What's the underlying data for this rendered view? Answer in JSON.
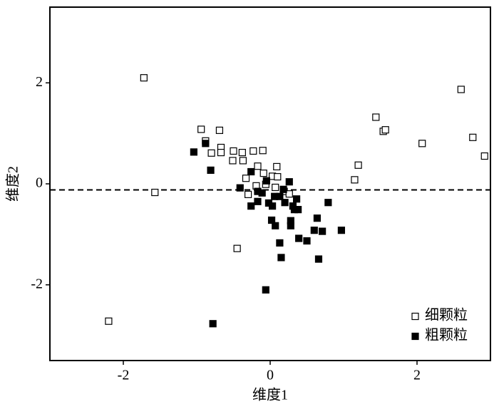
{
  "chart_data": {
    "type": "scatter",
    "x_label": "维度1",
    "y_label": "维度2",
    "xlim": [
      -3,
      3
    ],
    "ylim": [
      -3.5,
      3.5
    ],
    "xticks": [
      -2,
      0,
      2
    ],
    "yticks": [
      -2,
      0,
      2
    ],
    "hline": -0.12,
    "legend": "lower right",
    "series": [
      {
        "name": "细颗粒",
        "color": "#000000",
        "filled": false,
        "x": [
          -1.72,
          -2.2,
          -1.57,
          -0.94,
          -0.88,
          -0.69,
          -0.8,
          -0.67,
          -0.67,
          -0.5,
          -0.38,
          -0.23,
          -0.1,
          -0.51,
          -0.37,
          -0.17,
          0.09,
          -0.09,
          0.03,
          0.1,
          -0.33,
          -0.45,
          -0.19,
          -0.3,
          -0.06,
          0.07,
          0.19,
          0.26,
          1.15,
          1.2,
          1.44,
          1.54,
          1.57,
          2.07,
          2.6,
          2.76,
          2.92
        ],
        "y": [
          2.1,
          -2.72,
          -0.17,
          1.08,
          0.85,
          1.06,
          0.61,
          0.72,
          0.62,
          0.65,
          0.62,
          0.65,
          0.66,
          0.46,
          0.46,
          0.35,
          0.34,
          0.21,
          0.15,
          0.14,
          0.11,
          -1.28,
          -0.04,
          -0.21,
          -0.01,
          -0.07,
          -0.15,
          -0.2,
          0.08,
          0.37,
          1.32,
          1.04,
          1.07,
          0.8,
          1.87,
          0.92,
          0.55
        ]
      },
      {
        "name": "粗颗粒",
        "color": "#000000",
        "filled": true,
        "x": [
          -1.04,
          -0.88,
          -0.81,
          -0.41,
          -0.26,
          -0.26,
          -0.17,
          -0.17,
          -0.11,
          -0.05,
          -0.02,
          0.03,
          0.06,
          0.13,
          0.18,
          0.2,
          0.26,
          0.31,
          0.33,
          0.36,
          0.38,
          0.28,
          0.28,
          0.02,
          0.07,
          0.13,
          0.15,
          0.39,
          0.5,
          0.64,
          0.6,
          0.71,
          0.79,
          0.97,
          0.66,
          -0.06,
          -0.78
        ],
        "y": [
          0.63,
          0.8,
          0.27,
          -0.08,
          0.24,
          -0.44,
          -0.15,
          -0.35,
          -0.18,
          0.06,
          -0.38,
          -0.44,
          -0.25,
          -0.25,
          -0.11,
          -0.37,
          0.04,
          -0.44,
          -0.51,
          -0.3,
          -0.51,
          -0.73,
          -0.83,
          -0.72,
          -0.83,
          -1.17,
          -1.46,
          -1.08,
          -1.13,
          -0.68,
          -0.92,
          -0.94,
          -0.37,
          -0.92,
          -1.49,
          -2.1,
          -2.77
        ]
      }
    ]
  }
}
